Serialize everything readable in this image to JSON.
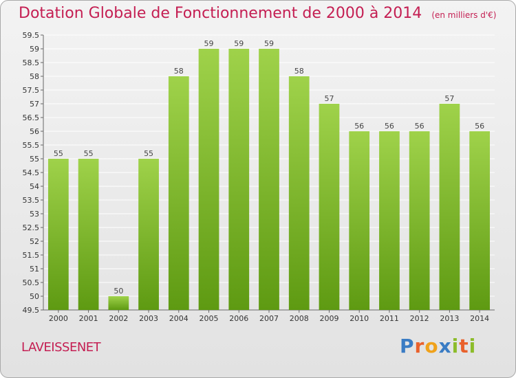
{
  "header": {
    "title": "Dotation Globale de Fonctionnement de 2000 à 2014",
    "unit": "(en milliers d'€)"
  },
  "footer": {
    "commune": "LAVEISSENET",
    "logo": [
      "P",
      "r",
      "o",
      "x",
      "i",
      "t",
      "i"
    ]
  },
  "colors": {
    "title": "#c41e52",
    "bar_top": "#9fd24a",
    "bar_bottom": "#5e9a12",
    "logo": [
      "#3a7cc4",
      "#e9612c",
      "#f0a21a",
      "#3a7cc4",
      "#8cbc2a",
      "#e9612c",
      "#8cbc2a"
    ]
  },
  "chart_data": {
    "type": "bar",
    "categories": [
      "2000",
      "2001",
      "2002",
      "2003",
      "2004",
      "2005",
      "2006",
      "2007",
      "2008",
      "2009",
      "2010",
      "2011",
      "2012",
      "2013",
      "2014"
    ],
    "values": [
      55,
      55,
      50,
      55,
      58,
      59,
      59,
      59,
      58,
      57,
      56,
      56,
      56,
      57,
      56
    ],
    "value_labels": [
      "55",
      "55",
      "50",
      "55",
      "58",
      "59",
      "59",
      "59",
      "58",
      "57",
      "56",
      "56",
      "56",
      "57",
      "56"
    ],
    "ylim": [
      49.5,
      59.5
    ],
    "yticks": [
      49.5,
      50,
      50.5,
      51,
      51.5,
      52,
      52.5,
      53,
      53.5,
      54,
      54.5,
      55,
      55.5,
      56,
      56.5,
      57,
      57.5,
      58,
      58.5,
      59,
      59.5
    ],
    "ytick_labels": [
      "49.5",
      "50",
      "50.5",
      "51",
      "51.5",
      "52",
      "52.5",
      "53",
      "53.5",
      "54",
      "54.5",
      "55",
      "55.5",
      "56",
      "56.5",
      "57",
      "57.5",
      "58",
      "58.5",
      "59",
      "59.5"
    ],
    "grid": true
  }
}
